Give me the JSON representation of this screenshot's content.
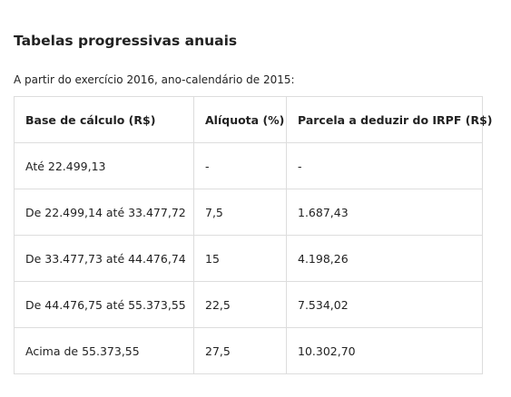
{
  "heading": "Tabelas progressivas anuais",
  "intro": "A partir do exercício 2016, ano-calendário de 2015:",
  "table": {
    "headers": [
      "Base de cálculo (R$)",
      "Alíquota (%)",
      "Parcela a deduzir do IRPF (R$)"
    ],
    "rows": [
      [
        "Até 22.499,13",
        "-",
        "-"
      ],
      [
        "De 22.499,14 até 33.477,72",
        "7,5",
        "1.687,43"
      ],
      [
        "De 33.477,73 até 44.476,74",
        "15",
        "4.198,26"
      ],
      [
        "De 44.476,75 até 55.373,55",
        "22,5",
        "7.534,02"
      ],
      [
        "Acima de 55.373,55",
        "27,5",
        "10.302,70"
      ]
    ]
  }
}
